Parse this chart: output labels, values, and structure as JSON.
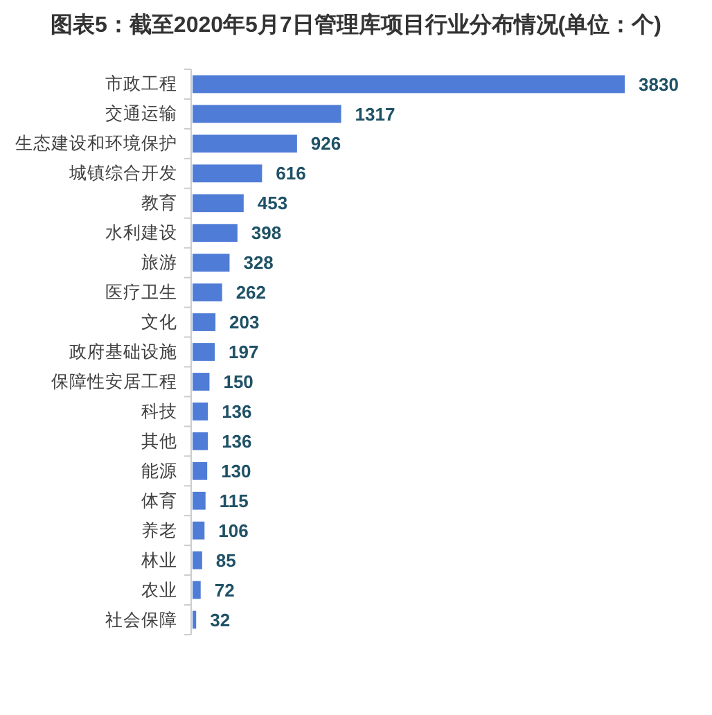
{
  "chart_data": {
    "type": "bar",
    "orientation": "horizontal",
    "title": "图表5：截至2020年5月7日管理库项目行业分布情况(单位：个)",
    "categories": [
      "市政工程",
      "交通运输",
      "生态建设和环境保护",
      "城镇综合开发",
      "教育",
      "水利建设",
      "旅游",
      "医疗卫生",
      "文化",
      "政府基础设施",
      "保障性安居工程",
      "科技",
      "其他",
      "能源",
      "体育",
      "养老",
      "林业",
      "农业",
      "社会保障"
    ],
    "values": [
      3830,
      1317,
      926,
      616,
      453,
      398,
      328,
      262,
      203,
      197,
      150,
      136,
      136,
      130,
      115,
      106,
      85,
      72,
      32
    ],
    "color": "#4f7cd6",
    "data_labels": true
  }
}
